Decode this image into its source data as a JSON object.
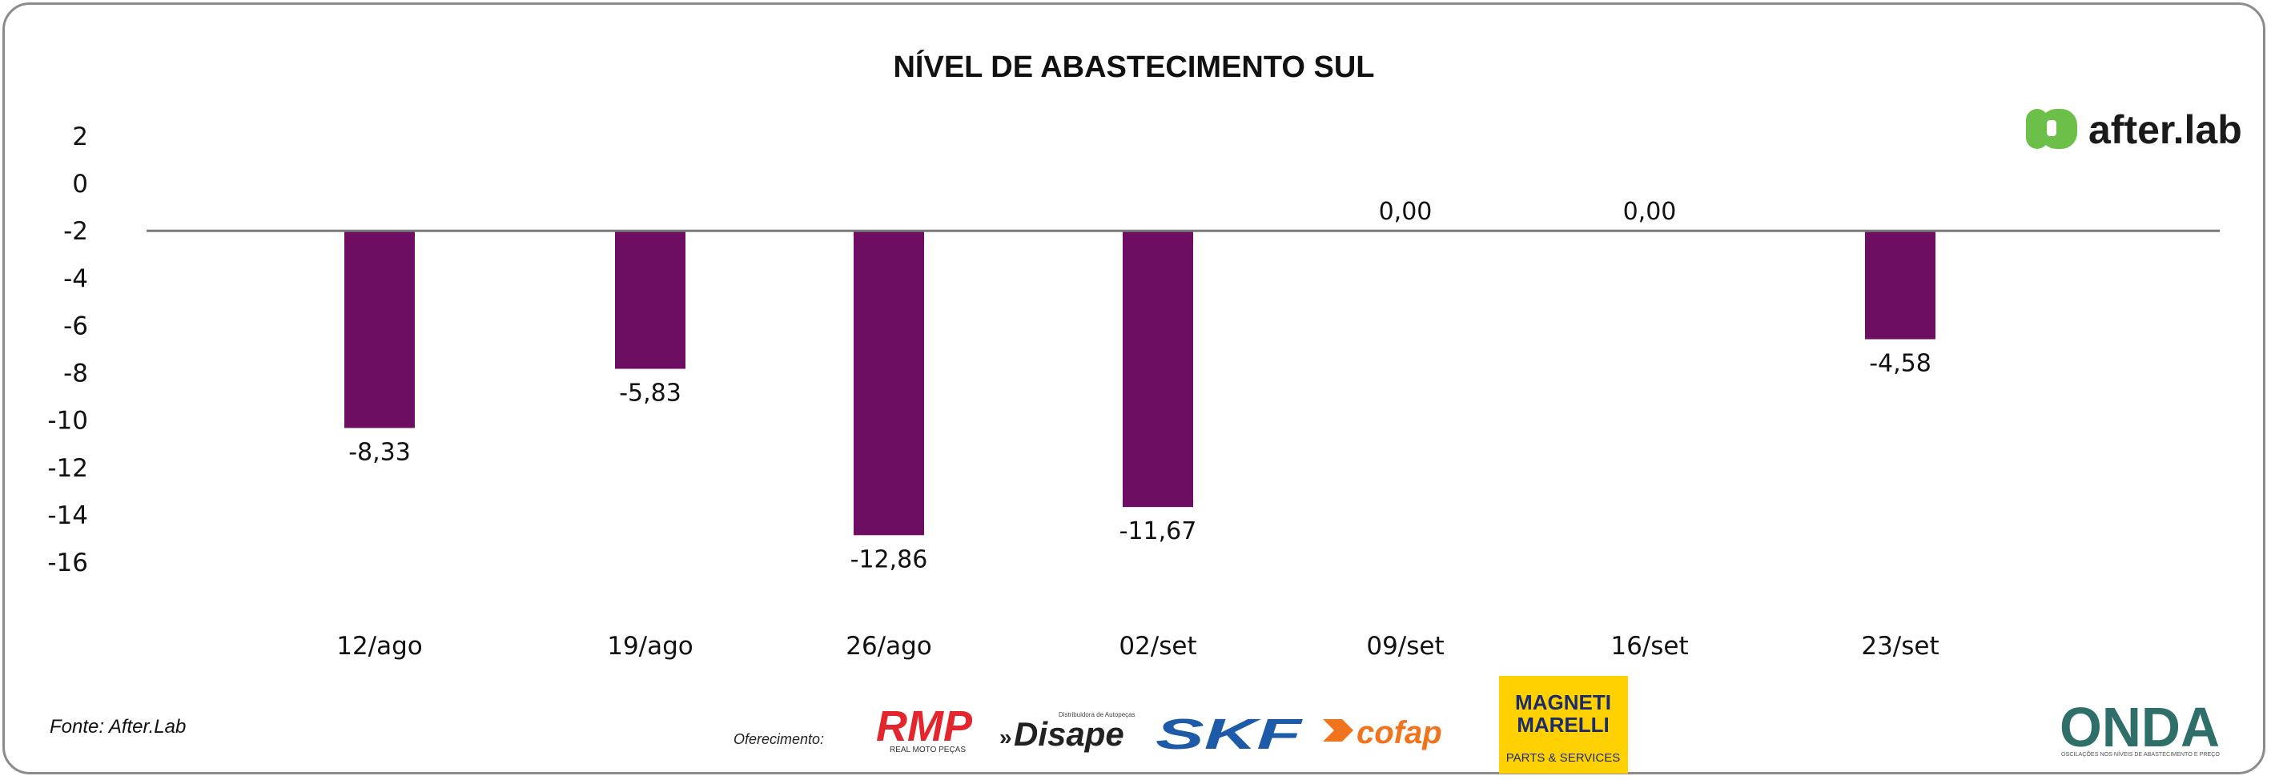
{
  "chart_data": {
    "type": "bar",
    "title": "NÍVEL DE ABASTECIMENTO SUL",
    "categories": [
      "12/ago",
      "19/ago",
      "26/ago",
      "02/set",
      "09/set",
      "16/set",
      "23/set"
    ],
    "values": [
      -8.33,
      -5.83,
      -12.86,
      -11.67,
      0.0,
      0.0,
      -4.58
    ],
    "value_labels": [
      "-8,33",
      "-5,83",
      "-12,86",
      "-11,67",
      "0,00",
      "0,00",
      "-4,58"
    ],
    "yticks": [
      "2",
      "0",
      "-2",
      "-4",
      "-6",
      "-8",
      "-10",
      "-12",
      "-14",
      "-16"
    ],
    "ylim": [
      -16,
      2
    ],
    "grid": false,
    "legend": "none",
    "bar_color": "#6d0e63",
    "xlabel": "",
    "ylabel": ""
  },
  "source_label": "Fonte: After.Lab",
  "sponsor_label": "Oferecimento:",
  "logos": {
    "afterlab": {
      "name": "afterlab-logo",
      "text": "after.lab",
      "color": "#6cc04a"
    },
    "rmp": {
      "name": "rmp-logo",
      "text": "RMP",
      "subtext": "REAL MOTO PEÇAS",
      "color": "#e3262d"
    },
    "disape": {
      "name": "disape-logo",
      "text": "Disape",
      "subtext": "Distribuidora de Autopeças",
      "color": "#222222"
    },
    "skf": {
      "name": "skf-logo",
      "text": "SKF",
      "color": "#1d5aa8"
    },
    "cofap": {
      "name": "cofap-logo",
      "text": "cofap",
      "color": "#f0731e"
    },
    "magneti": {
      "name": "magneti-marelli-logo",
      "text_top": "MAGNETI",
      "text_mid": "MARELLI",
      "text_bottom": "PARTS & SERVICES",
      "color": "#ffd100"
    },
    "onda": {
      "name": "onda-logo",
      "text": "ONDA",
      "subtext": "OSCILAÇÕES NOS NÍVEIS DE ABASTECIMENTO E PREÇO",
      "color": "#2e6f6a"
    }
  }
}
